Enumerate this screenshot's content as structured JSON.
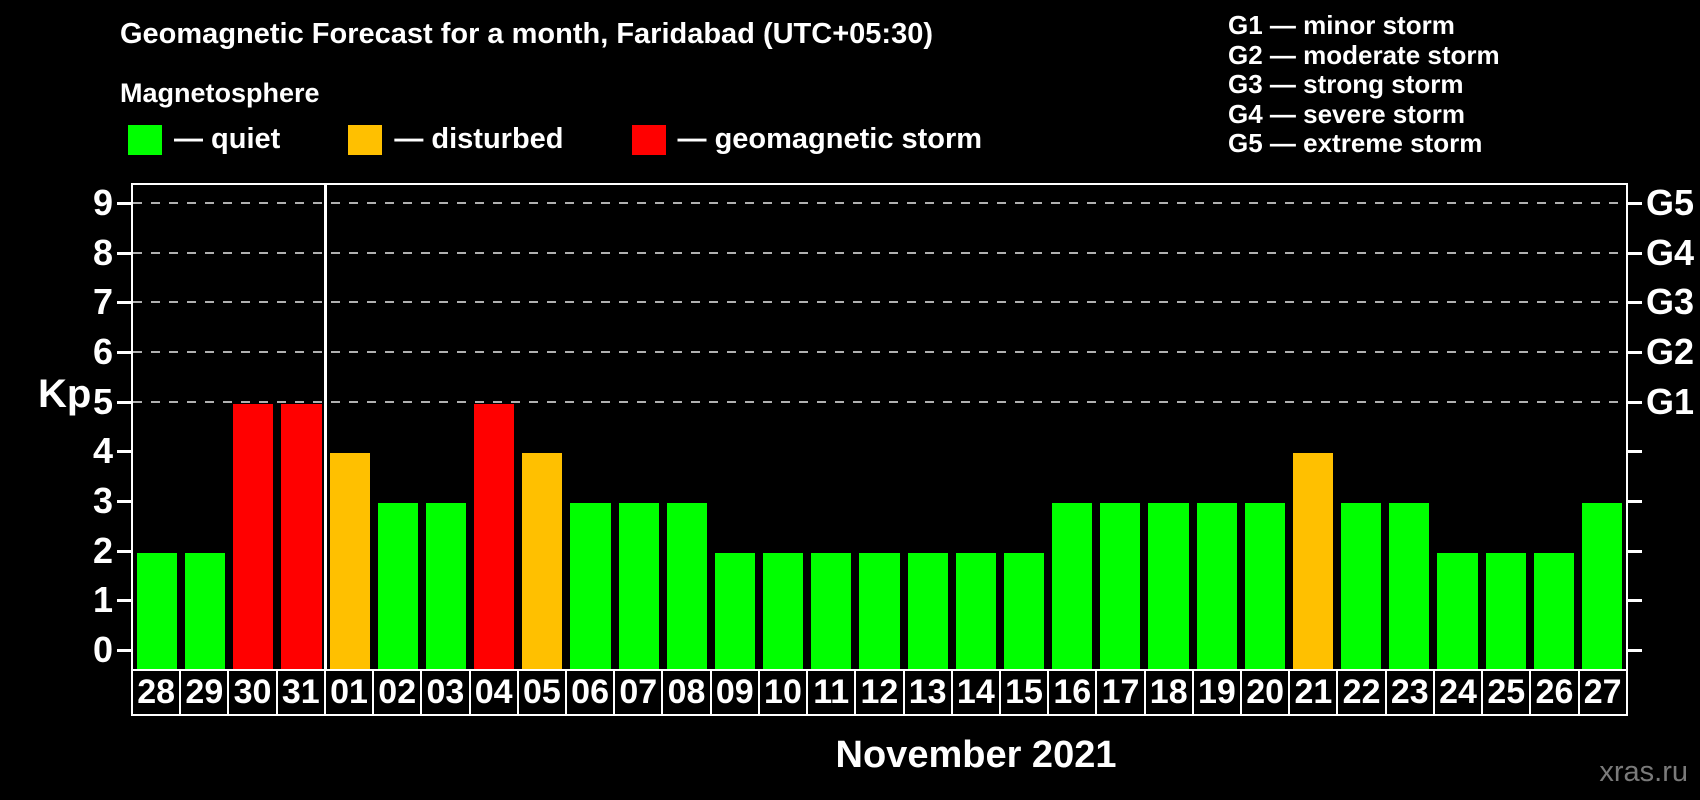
{
  "page": {
    "title": "Geomagnetic Forecast for a month, Faridabad (UTC+05:30)",
    "subtitle": "Magnetosphere",
    "month_label": "November 2021",
    "watermark": "xras.ru"
  },
  "legend": {
    "items": [
      {
        "name": "quiet",
        "label": "— quiet",
        "color": "#00ff00"
      },
      {
        "name": "disturbed",
        "label": "— disturbed",
        "color": "#ffc000"
      },
      {
        "name": "storm",
        "label": "— geomagnetic storm",
        "color": "#ff0000"
      }
    ]
  },
  "g_legend": {
    "items": [
      "G1 — minor storm",
      "G2 — moderate storm",
      "G3 — strong storm",
      "G4 — severe storm",
      "G5 — extreme storm"
    ]
  },
  "chart_data": {
    "type": "bar",
    "title": "Geomagnetic Forecast for a month, Faridabad (UTC+05:30)",
    "ylabel": "Kp",
    "xlabel": "November 2021",
    "ylim": [
      0,
      9.4
    ],
    "yticks": [
      0,
      1,
      2,
      3,
      4,
      5,
      6,
      7,
      8,
      9
    ],
    "grid_kp": [
      5,
      6,
      7,
      8,
      9
    ],
    "right_labels": [
      {
        "kp": 5,
        "text": "G1"
      },
      {
        "kp": 6,
        "text": "G2"
      },
      {
        "kp": 7,
        "text": "G3"
      },
      {
        "kp": 8,
        "text": "G4"
      },
      {
        "kp": 9,
        "text": "G5"
      }
    ],
    "status_colors": {
      "quiet": "#00ff00",
      "disturbed": "#ffc000",
      "storm": "#ff0000"
    },
    "month_separator_after_index": 3,
    "legend_position": "top",
    "grid": "dashed horizontal at Kp 5-9 only",
    "categories": [
      "28",
      "29",
      "30",
      "31",
      "01",
      "02",
      "03",
      "04",
      "05",
      "06",
      "07",
      "08",
      "09",
      "10",
      "11",
      "12",
      "13",
      "14",
      "15",
      "16",
      "17",
      "18",
      "19",
      "20",
      "21",
      "22",
      "23",
      "24",
      "25",
      "26",
      "27"
    ],
    "bars": [
      {
        "day": "28",
        "kp": 2,
        "status": "quiet"
      },
      {
        "day": "29",
        "kp": 2,
        "status": "quiet"
      },
      {
        "day": "30",
        "kp": 5,
        "status": "storm"
      },
      {
        "day": "31",
        "kp": 5,
        "status": "storm"
      },
      {
        "day": "01",
        "kp": 4,
        "status": "disturbed"
      },
      {
        "day": "02",
        "kp": 3,
        "status": "quiet"
      },
      {
        "day": "03",
        "kp": 3,
        "status": "quiet"
      },
      {
        "day": "04",
        "kp": 5,
        "status": "storm"
      },
      {
        "day": "05",
        "kp": 4,
        "status": "disturbed"
      },
      {
        "day": "06",
        "kp": 3,
        "status": "quiet"
      },
      {
        "day": "07",
        "kp": 3,
        "status": "quiet"
      },
      {
        "day": "08",
        "kp": 3,
        "status": "quiet"
      },
      {
        "day": "09",
        "kp": 2,
        "status": "quiet"
      },
      {
        "day": "10",
        "kp": 2,
        "status": "quiet"
      },
      {
        "day": "11",
        "kp": 2,
        "status": "quiet"
      },
      {
        "day": "12",
        "kp": 2,
        "status": "quiet"
      },
      {
        "day": "13",
        "kp": 2,
        "status": "quiet"
      },
      {
        "day": "14",
        "kp": 2,
        "status": "quiet"
      },
      {
        "day": "15",
        "kp": 2,
        "status": "quiet"
      },
      {
        "day": "16",
        "kp": 3,
        "status": "quiet"
      },
      {
        "day": "17",
        "kp": 3,
        "status": "quiet"
      },
      {
        "day": "18",
        "kp": 3,
        "status": "quiet"
      },
      {
        "day": "19",
        "kp": 3,
        "status": "quiet"
      },
      {
        "day": "20",
        "kp": 3,
        "status": "quiet"
      },
      {
        "day": "21",
        "kp": 4,
        "status": "disturbed"
      },
      {
        "day": "22",
        "kp": 3,
        "status": "quiet"
      },
      {
        "day": "23",
        "kp": 3,
        "status": "quiet"
      },
      {
        "day": "24",
        "kp": 2,
        "status": "quiet"
      },
      {
        "day": "25",
        "kp": 2,
        "status": "quiet"
      },
      {
        "day": "26",
        "kp": 2,
        "status": "quiet"
      },
      {
        "day": "27",
        "kp": 3,
        "status": "quiet"
      }
    ]
  }
}
